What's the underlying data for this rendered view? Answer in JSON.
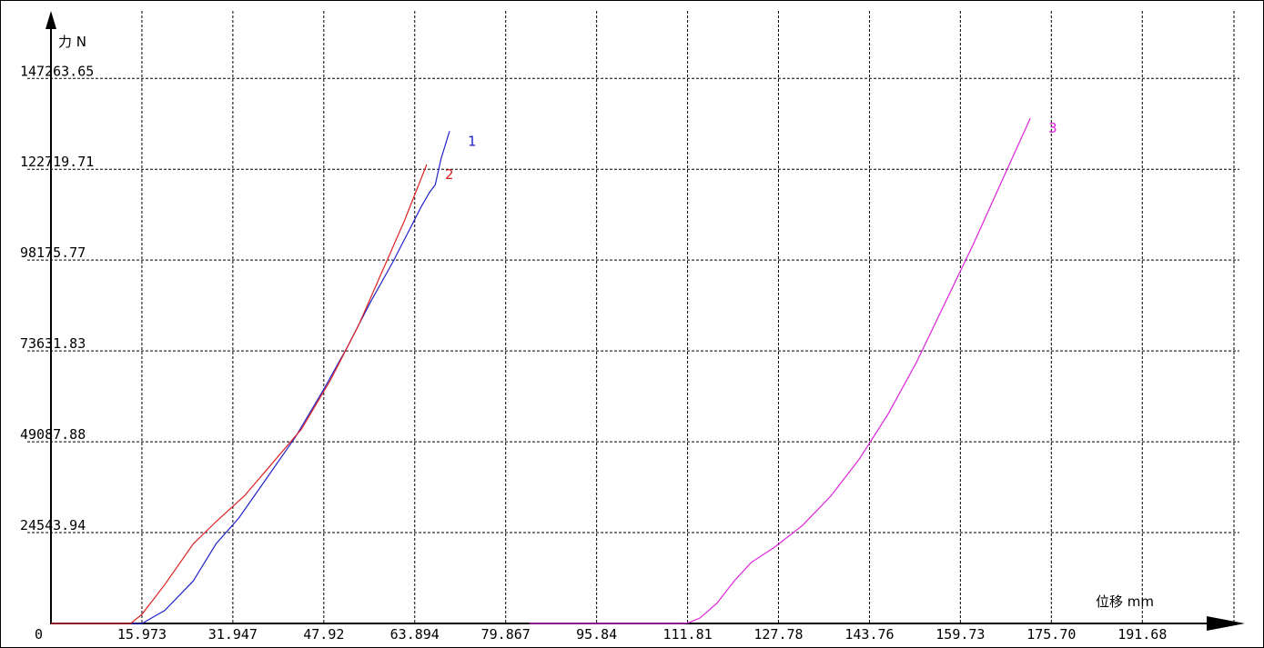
{
  "chart_data": {
    "type": "line",
    "title": "",
    "ylabel": "力 N",
    "xlabel": "位移 mm",
    "ylim": [
      0,
      147263.65
    ],
    "xlim": [
      0,
      209
    ],
    "origin_label": "0",
    "y_ticks": [
      0,
      24543.94,
      49087.88,
      73631.83,
      98175.77,
      122719.71,
      147263.65
    ],
    "y_tick_labels": [
      "0",
      "24543.94",
      "49087.88",
      "73631.83",
      "98175.77",
      "122719.71",
      "147263.65"
    ],
    "x_ticks": [
      15.973,
      31.947,
      47.92,
      63.894,
      79.867,
      95.84,
      111.81,
      127.78,
      143.76,
      159.73,
      175.7,
      191.68
    ],
    "x_tick_labels": [
      "15.973",
      "31.947",
      "47.92",
      "63.894",
      "79.867",
      "95.84",
      "111.81",
      "127.78",
      "143.76",
      "159.73",
      "175.70",
      "191.68"
    ],
    "grid": true,
    "series": [
      {
        "name": "1",
        "color": "#2222cc",
        "x": [
          0,
          12.5,
          14,
          16,
          20,
          25,
          29,
          33,
          38,
          43,
          48,
          52,
          56,
          60,
          63,
          65,
          66.5,
          67.5,
          68.5,
          70
        ],
        "y": [
          0,
          0,
          0,
          0,
          3500,
          11500,
          21500,
          28500,
          39500,
          50500,
          63500,
          74500,
          86500,
          97500,
          106500,
          112500,
          116500,
          118500,
          125500,
          133000
        ]
      },
      {
        "name": "2",
        "color": "#dd2222",
        "x": [
          0,
          12.5,
          14,
          16,
          20,
          25,
          29,
          34,
          39,
          44,
          49,
          54,
          58,
          62,
          66
        ],
        "y": [
          0,
          0,
          0,
          2500,
          10500,
          21500,
          27500,
          34500,
          43500,
          52500,
          65500,
          80500,
          94500,
          108500,
          124000
        ]
      },
      {
        "name": "3",
        "color": "#dd22dd",
        "x": [
          84,
          111,
          112,
          114,
          117,
          120,
          123,
          127,
          132,
          137,
          142,
          147,
          152,
          157,
          162,
          167,
          172
        ],
        "y": [
          0,
          0,
          200,
          1500,
          5500,
          11500,
          16500,
          20500,
          26500,
          34500,
          44500,
          56500,
          70500,
          86500,
          102500,
          119500,
          136500
        ]
      }
    ]
  }
}
